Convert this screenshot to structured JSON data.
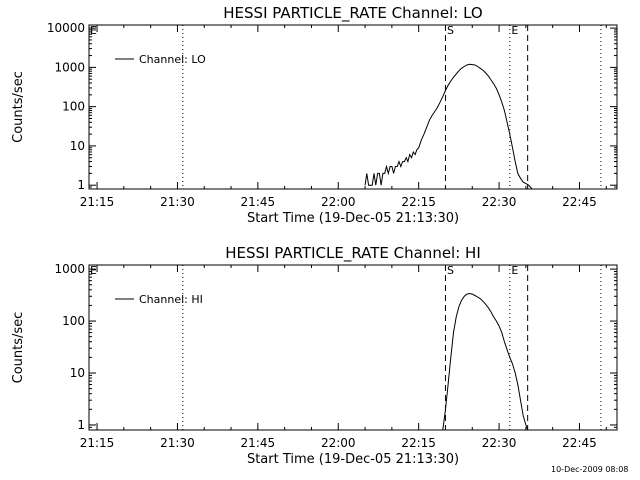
{
  "footer_timestamp": "10-Dec-2009 08:08",
  "chart_data": [
    {
      "type": "line",
      "title": "HESSI PARTICLE_RATE Channel: LO",
      "xlabel": "Start Time (19-Dec-05 21:13:30)",
      "ylabel": "Counts/sec",
      "yscale": "log",
      "xlim": [
        "21:13:30",
        "22:52:00"
      ],
      "ylim": [
        0.8,
        12000
      ],
      "x_ticks": [
        "21:15",
        "21:30",
        "21:45",
        "22:00",
        "22:15",
        "22:30",
        "22:45"
      ],
      "y_ticks": [
        {
          "value": 1,
          "label": "1"
        },
        {
          "value": 10,
          "label": "10"
        },
        {
          "value": 100,
          "label": "100"
        },
        {
          "value": 1000,
          "label": "1000"
        },
        {
          "value": 10000,
          "label": "10000"
        }
      ],
      "legend": {
        "position": "top-left",
        "entries": [
          "Channel: LO"
        ]
      },
      "markers": [
        {
          "type": "dotted",
          "time": "21:31",
          "label": ""
        },
        {
          "type": "dashed",
          "time": "22:20",
          "label": "S"
        },
        {
          "type": "dotted",
          "time": "22:32",
          "label": "E"
        },
        {
          "type": "dashed",
          "time": "22:35:20",
          "label": ""
        },
        {
          "type": "dotted",
          "time": "22:49",
          "label": ""
        }
      ],
      "corner_mark": "E",
      "series": [
        {
          "name": "Channel: LO",
          "x": [
            "22:05:00",
            "22:05:20",
            "22:05:40",
            "22:06:00",
            "22:06:20",
            "22:06:40",
            "22:07:00",
            "22:07:20",
            "22:07:40",
            "22:08:00",
            "22:08:20",
            "22:08:40",
            "22:09:00",
            "22:09:20",
            "22:09:40",
            "22:10:00",
            "22:10:20",
            "22:10:40",
            "22:11:00",
            "22:11:20",
            "22:11:40",
            "22:12:00",
            "22:12:20",
            "22:12:40",
            "22:13:00",
            "22:13:20",
            "22:13:40",
            "22:14:00",
            "22:14:20",
            "22:14:40",
            "22:15:00",
            "22:15:30",
            "22:16:00",
            "22:16:30",
            "22:17:00",
            "22:17:30",
            "22:18:00",
            "22:18:30",
            "22:19:00",
            "22:19:30",
            "22:20:00",
            "22:20:30",
            "22:21:00",
            "22:21:30",
            "22:22:00",
            "22:22:30",
            "22:23:00",
            "22:23:30",
            "22:24:00",
            "22:24:30",
            "22:25:00",
            "22:25:30",
            "22:26:00",
            "22:26:30",
            "22:27:00",
            "22:27:30",
            "22:28:00",
            "22:28:30",
            "22:29:00",
            "22:29:30",
            "22:30:00",
            "22:30:30",
            "22:31:00",
            "22:31:30",
            "22:32:00",
            "22:32:30",
            "22:33:00",
            "22:33:30",
            "22:34:00",
            "22:34:30",
            "22:35:00",
            "22:35:30",
            "22:35:50",
            "22:36:10",
            "22:36:30"
          ],
          "values": [
            1,
            2,
            1,
            1,
            1,
            2,
            1,
            2,
            2,
            1,
            2,
            2,
            3,
            2,
            3,
            3,
            2,
            3,
            3,
            4,
            3,
            4,
            4,
            5,
            4,
            6,
            5,
            7,
            6,
            8,
            9,
            14,
            20,
            30,
            45,
            60,
            75,
            95,
            130,
            180,
            260,
            350,
            450,
            560,
            680,
            820,
            950,
            1050,
            1150,
            1200,
            1180,
            1150,
            1050,
            950,
            850,
            720,
            600,
            480,
            380,
            290,
            200,
            130,
            80,
            40,
            20,
            9,
            4,
            2,
            1.5,
            1.2,
            1.1,
            1,
            0.9,
            0.8,
            0.8
          ]
        }
      ]
    },
    {
      "type": "line",
      "title": "HESSI PARTICLE_RATE Channel: HI",
      "xlabel": "Start Time (19-Dec-05 21:13:30)",
      "ylabel": "Counts/sec",
      "yscale": "log",
      "xlim": [
        "21:13:30",
        "22:52:00"
      ],
      "ylim": [
        0.8,
        1200
      ],
      "x_ticks": [
        "21:15",
        "21:30",
        "21:45",
        "22:00",
        "22:15",
        "22:30",
        "22:45"
      ],
      "y_ticks": [
        {
          "value": 1,
          "label": "1"
        },
        {
          "value": 10,
          "label": "10"
        },
        {
          "value": 100,
          "label": "100"
        },
        {
          "value": 1000,
          "label": "1000"
        }
      ],
      "legend": {
        "position": "top-left",
        "entries": [
          "Channel: HI"
        ]
      },
      "markers": [
        {
          "type": "dotted",
          "time": "21:31",
          "label": ""
        },
        {
          "type": "dashed",
          "time": "22:20",
          "label": "S"
        },
        {
          "type": "dotted",
          "time": "22:32",
          "label": "E"
        },
        {
          "type": "dashed",
          "time": "22:35:20",
          "label": ""
        },
        {
          "type": "dotted",
          "time": "22:49",
          "label": ""
        }
      ],
      "corner_mark": "E",
      "series": [
        {
          "name": "Channel: HI",
          "x": [
            "22:19:30",
            "22:20:00",
            "22:20:30",
            "22:21:00",
            "22:21:30",
            "22:22:00",
            "22:22:30",
            "22:23:00",
            "22:23:30",
            "22:24:00",
            "22:24:30",
            "22:25:00",
            "22:25:30",
            "22:26:00",
            "22:26:30",
            "22:27:00",
            "22:27:30",
            "22:28:00",
            "22:28:30",
            "22:29:00",
            "22:29:30",
            "22:30:00",
            "22:30:30",
            "22:31:00",
            "22:31:30",
            "22:32:00",
            "22:32:30",
            "22:33:00",
            "22:33:30",
            "22:34:00",
            "22:34:30",
            "22:35:00",
            "22:35:20"
          ],
          "values": [
            0.8,
            2,
            6,
            20,
            60,
            120,
            190,
            250,
            300,
            330,
            340,
            330,
            310,
            290,
            270,
            240,
            210,
            180,
            150,
            120,
            100,
            80,
            60,
            40,
            28,
            20,
            15,
            10,
            6,
            3,
            1.5,
            1,
            0.8
          ]
        }
      ]
    }
  ]
}
